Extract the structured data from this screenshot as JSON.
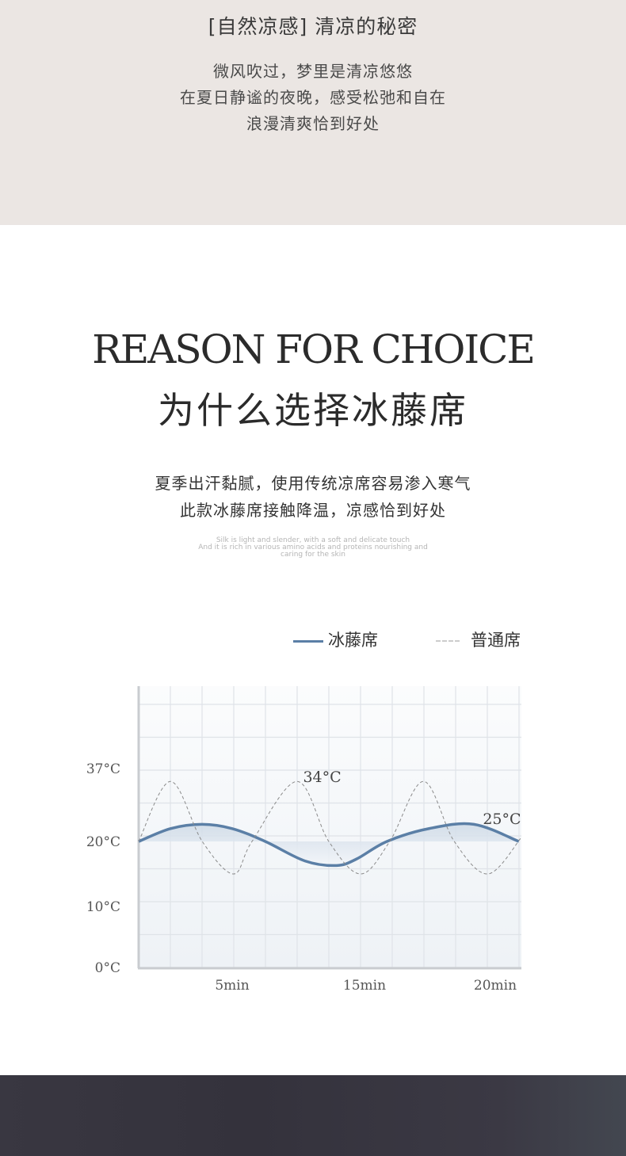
{
  "intro": {
    "title": "[自然凉感] 清凉的秘密",
    "lines": [
      "微风吹过，梦里是清凉悠悠",
      "在夏日静谧的夜晚，感受松弛和自在",
      "浪漫清爽恰到好处"
    ]
  },
  "reason": {
    "heading_en": "REASON FOR CHOICE",
    "heading_cn": "为什么选择冰藤席",
    "lines": [
      "夏季出汗黏腻，使用传统凉席容易渗入寒气",
      "此款冰藤席接触降温，凉感恰到好处"
    ],
    "small_lines": [
      "Silk is light and slender, with a soft and delicate touch",
      "And it is rich in various amino acids and proteins nourishing and",
      "caring for the skin"
    ]
  },
  "colors": {
    "top_bg": "#ebe6e3",
    "ice_line": "#5b7fa6",
    "normal_line": "#8a8a8a",
    "dark_bg": "#393741"
  },
  "chart_data": {
    "type": "line",
    "legend": {
      "position": "top-right",
      "entries": [
        "冰藤席",
        "普通席"
      ]
    },
    "y_ticks": [
      {
        "v": 0,
        "label": "0°C"
      },
      {
        "v": 10,
        "label": "10°C"
      },
      {
        "v": 20,
        "label": "20°C"
      },
      {
        "v": 37,
        "label": "37°C"
      }
    ],
    "x_ticks": [
      {
        "v": 5,
        "label": "5min"
      },
      {
        "v": 15,
        "label": "15min"
      },
      {
        "v": 20,
        "label": "20min"
      }
    ],
    "grid": true,
    "annotations": [
      {
        "label": "34°C",
        "x": 11.8,
        "y": 35
      },
      {
        "label": "25°C",
        "x": 19.9,
        "y": 25.2
      }
    ],
    "series": [
      {
        "name": "冰藤席",
        "style": "solid",
        "x": [
          0,
          1.7,
          3.4,
          5,
          7.5,
          10.5,
          12.9,
          14.4,
          15.8,
          17.3,
          18.9,
          20.5
        ],
        "y": [
          20,
          23,
          24,
          23,
          20,
          17,
          16.3,
          17.3,
          20,
          23,
          24,
          20
        ]
      },
      {
        "name": "普通席",
        "style": "dashed",
        "x": [
          0,
          1.7,
          3.4,
          5.1,
          6.5,
          9.9,
          12.3,
          14.7,
          15.9,
          17.1,
          18.2,
          19.4,
          20.6
        ],
        "y": [
          20,
          34,
          20,
          15,
          20,
          34,
          20,
          15,
          20,
          34,
          20,
          15,
          21
        ]
      }
    ]
  },
  "legend_labels": {
    "ice": "冰藤席",
    "normal": "普通席"
  }
}
